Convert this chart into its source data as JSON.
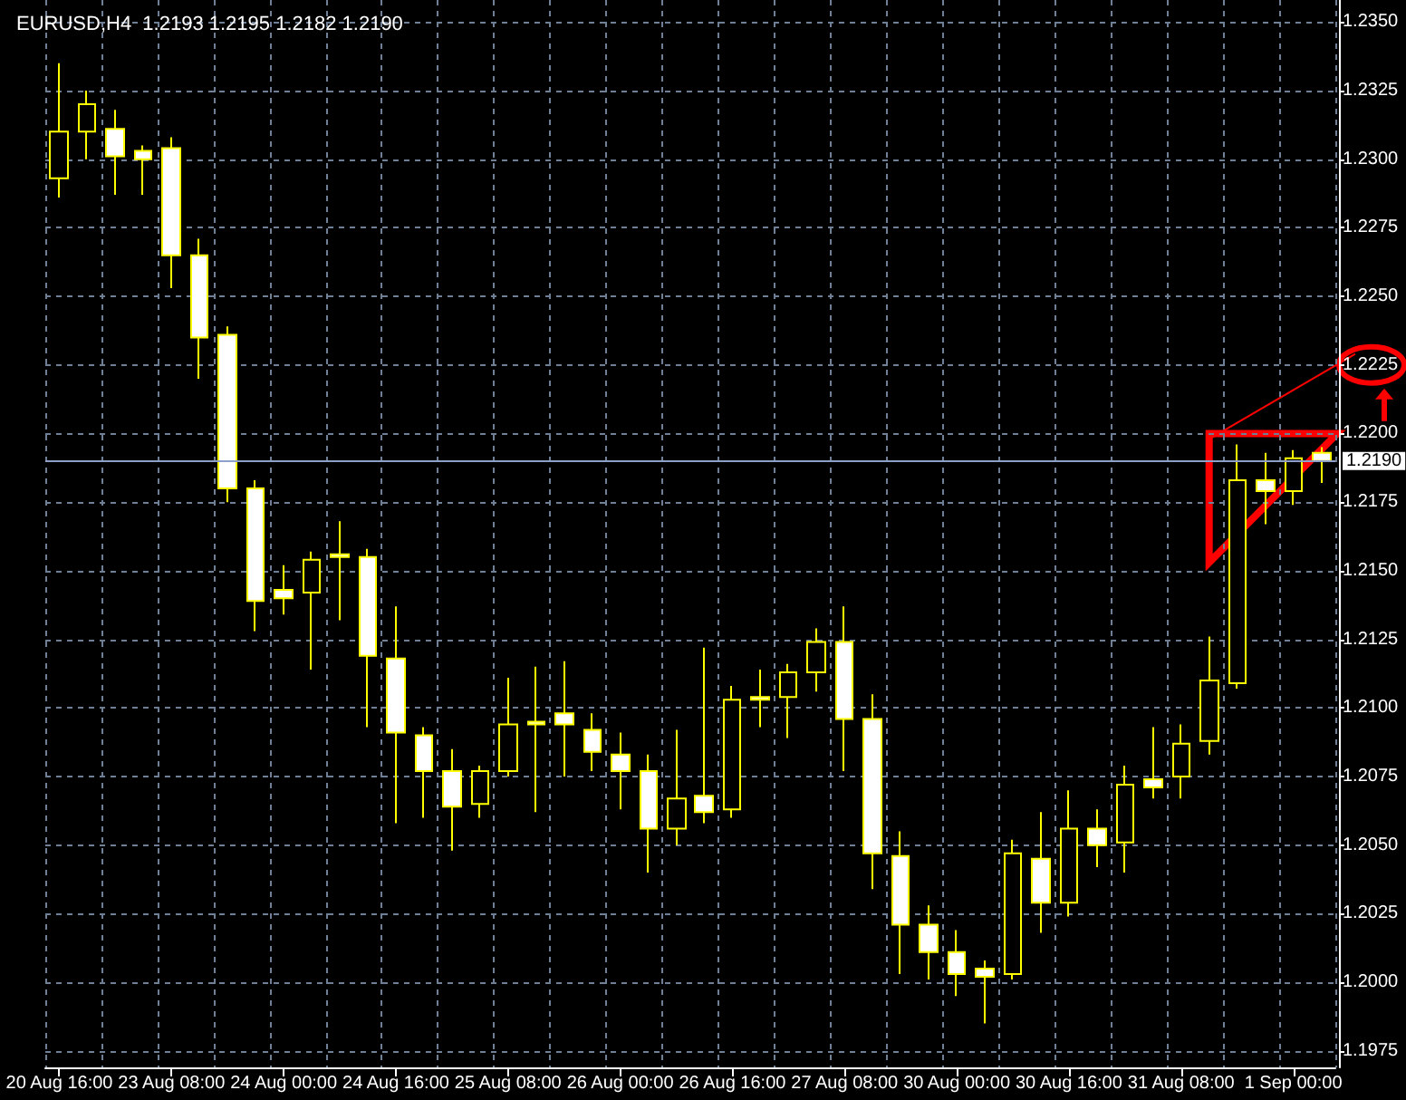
{
  "chart_data": {
    "type": "candlestick",
    "title": "EURUSD,H4  1.2193 1.2195 1.2182 1.2190",
    "categories": [
      "20 Aug 16:00",
      null,
      null,
      null,
      "23 Aug 08:00",
      null,
      null,
      null,
      "24 Aug 00:00",
      null,
      null,
      null,
      "24 Aug 16:00",
      null,
      null,
      null,
      "25 Aug 08:00",
      null,
      null,
      null,
      "26 Aug 00:00",
      null,
      null,
      null,
      "26 Aug 16:00",
      null,
      null,
      null,
      "27 Aug 08:00",
      null,
      null,
      null,
      "30 Aug 00:00",
      null,
      null,
      null,
      "30 Aug 16:00",
      null,
      null,
      null,
      "31 Aug 08:00",
      null,
      null,
      null,
      "1 Sep 00:00",
      null
    ],
    "series": [
      {
        "color": "#ffff00",
        "ohlc": [
          [
            1.2293,
            1.2335,
            1.2286,
            1.231
          ],
          [
            1.231,
            1.2325,
            1.23,
            1.232
          ],
          [
            1.2311,
            1.2318,
            1.2287,
            1.2301
          ],
          [
            1.2303,
            1.2305,
            1.2287,
            1.23
          ],
          [
            1.2304,
            1.2308,
            1.2253,
            1.2265
          ],
          [
            1.2265,
            1.2271,
            1.222,
            1.2235
          ],
          [
            1.2236,
            1.2239,
            1.2175,
            1.218
          ],
          [
            1.218,
            1.2183,
            1.2128,
            1.2139
          ],
          [
            1.2143,
            1.2152,
            1.2134,
            1.214
          ],
          [
            1.2142,
            1.2157,
            1.2114,
            1.2154
          ],
          [
            1.2156,
            1.2168,
            1.2132,
            1.2155
          ],
          [
            1.2155,
            1.2158,
            1.2093,
            1.2119
          ],
          [
            1.2118,
            1.2137,
            1.2058,
            1.2091
          ],
          [
            1.209,
            1.2093,
            1.206,
            1.2077
          ],
          [
            1.2077,
            1.2085,
            1.2048,
            1.2064
          ],
          [
            1.2065,
            1.2079,
            1.206,
            1.2077
          ],
          [
            1.2077,
            1.2111,
            1.2075,
            1.2094
          ],
          [
            1.2095,
            1.2115,
            1.2062,
            1.2094
          ],
          [
            1.2098,
            1.2117,
            1.2075,
            1.2094
          ],
          [
            1.2092,
            1.2098,
            1.2077,
            1.2084
          ],
          [
            1.2083,
            1.2091,
            1.2063,
            1.2077
          ],
          [
            1.2077,
            1.2083,
            1.204,
            1.2056
          ],
          [
            1.2056,
            1.2092,
            1.205,
            1.2067
          ],
          [
            1.2068,
            1.2122,
            1.2058,
            1.2062
          ],
          [
            1.2063,
            1.2108,
            1.206,
            1.2103
          ],
          [
            1.2104,
            1.2114,
            1.2093,
            1.2103
          ],
          [
            1.2104,
            1.2116,
            1.2089,
            1.2113
          ],
          [
            1.2113,
            1.2129,
            1.2106,
            1.2124
          ],
          [
            1.2124,
            1.2137,
            1.2077,
            1.2096
          ],
          [
            1.2096,
            1.2105,
            1.2034,
            1.2047
          ],
          [
            1.2046,
            1.2055,
            1.2003,
            1.2021
          ],
          [
            1.2021,
            1.2028,
            1.2001,
            1.2011
          ],
          [
            1.2011,
            1.2019,
            1.1995,
            1.2003
          ],
          [
            1.2005,
            1.2008,
            1.1985,
            1.2002
          ],
          [
            1.2003,
            1.2052,
            1.2001,
            1.2047
          ],
          [
            1.2045,
            1.2062,
            1.2018,
            1.2029
          ],
          [
            1.2029,
            1.207,
            1.2024,
            1.2056
          ],
          [
            1.2056,
            1.2063,
            1.2042,
            1.205
          ],
          [
            1.2051,
            1.2079,
            1.204,
            1.2072
          ],
          [
            1.2074,
            1.2093,
            1.2067,
            1.2071
          ],
          [
            1.2075,
            1.2094,
            1.2067,
            1.2087
          ],
          [
            1.2088,
            1.2126,
            1.2083,
            1.211
          ],
          [
            1.2109,
            1.2196,
            1.2107,
            1.2183
          ],
          [
            1.2183,
            1.2193,
            1.2167,
            1.2179
          ],
          [
            1.2179,
            1.2194,
            1.2174,
            1.2191
          ],
          [
            1.2193,
            1.2195,
            1.2182,
            1.219
          ]
        ]
      }
    ],
    "ylim": [
      1.1969,
      1.2358
    ],
    "yticks": [
      {
        "value": 1.1975,
        "label": "1.1975"
      },
      {
        "value": 1.2,
        "label": "1.2000"
      },
      {
        "value": 1.2025,
        "label": "1.2025"
      },
      {
        "value": 1.205,
        "label": "1.2050"
      },
      {
        "value": 1.2075,
        "label": "1.2075"
      },
      {
        "value": 1.21,
        "label": "1.2100"
      },
      {
        "value": 1.2125,
        "label": "1.2125"
      },
      {
        "value": 1.215,
        "label": "1.2150"
      },
      {
        "value": 1.2175,
        "label": "1.2175"
      },
      {
        "value": 1.22,
        "label": "1.2200"
      },
      {
        "value": 1.2225,
        "label": "1.2225"
      },
      {
        "value": 1.225,
        "label": "1.2250"
      },
      {
        "value": 1.2275,
        "label": "1.2275"
      },
      {
        "value": 1.23,
        "label": "1.2300"
      },
      {
        "value": 1.2325,
        "label": "1.2325"
      },
      {
        "value": 1.235,
        "label": "1.2350"
      }
    ],
    "ref_lines": [
      {
        "axis": "y",
        "value": 1.219,
        "label": "1.2190",
        "color": "#8fa0c8"
      }
    ],
    "grid": true
  }
}
